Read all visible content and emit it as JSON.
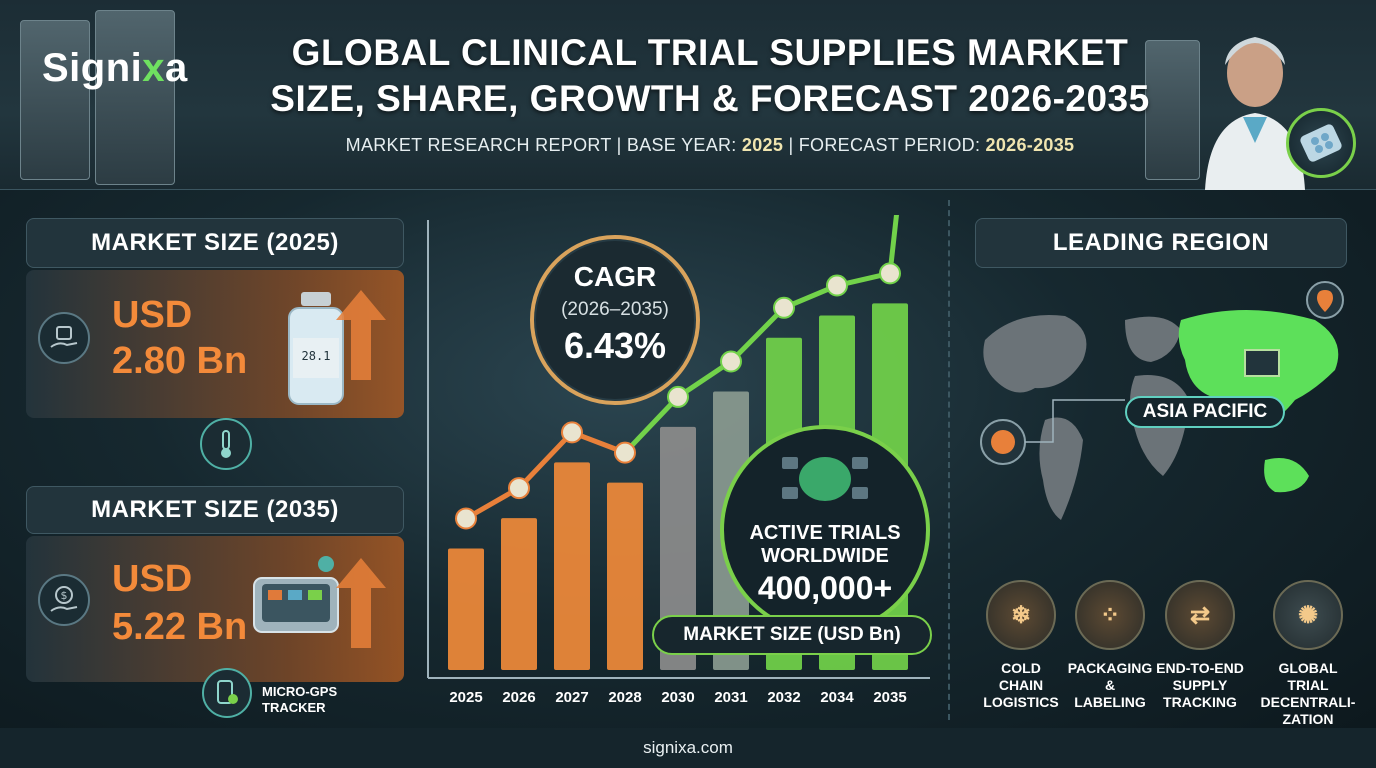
{
  "brand": {
    "logo_main": "Signi",
    "logo_x": "x",
    "logo_end": "a",
    "accent": "#6fe060"
  },
  "header": {
    "title_line1": "GLOBAL CLINICAL TRIAL SUPPLIES MARKET",
    "title_line2": "SIZE, SHARE, GROWTH & FORECAST 2026-2035",
    "sub_prefix": "MARKET RESEARCH REPORT | BASE YEAR: ",
    "base_year": "2025",
    "sub_mid": " | FORECAST PERIOD: ",
    "forecast_period": "2026-2035"
  },
  "left": {
    "size2025_title": "MARKET SIZE (2025)",
    "size2025_currency": "USD",
    "size2025_value": "2.80 Bn",
    "vial_label": "28.1",
    "size2035_title": "MARKET SIZE (2035)",
    "size2035_currency": "USD",
    "size2035_value": "5.22 Bn",
    "tracker_label_1": "MICRO-GPS",
    "tracker_label_2": "TRACKER",
    "orange": "#f38a3a"
  },
  "cagr": {
    "title": "CAGR",
    "period": "(2026–2035)",
    "value": "6.43%"
  },
  "trials": {
    "line1": "ACTIVE TRIALS",
    "line2": "WORLDWIDE",
    "value": "400,000+"
  },
  "chart_data": {
    "type": "bar",
    "legend": "MARKET SIZE (USD Bn)",
    "categories": [
      "2025",
      "2026",
      "2027",
      "2028",
      "2030",
      "2031",
      "2032",
      "2034",
      "2035"
    ],
    "values": [
      2.8,
      3.1,
      3.65,
      3.45,
      4.0,
      4.35,
      4.88,
      5.1,
      5.22
    ],
    "bar_colors": [
      "#f08a3a",
      "#f08a3a",
      "#f08a3a",
      "#f08a3a",
      "#8c8c8c",
      "#8a9a90",
      "#72d24a",
      "#72d24a",
      "#72d24a"
    ],
    "trend_line": true,
    "ylim": [
      1.6,
      5.5
    ]
  },
  "right": {
    "region_title": "LEADING REGION",
    "region_name": "ASIA PACIFIC",
    "services": [
      {
        "line1": "COLD",
        "line2": "CHAIN",
        "line3": "LOGISTICS",
        "icon": "cold-box-icon"
      },
      {
        "line1": "PACKAGING",
        "line2": "&",
        "line3": "LABELING",
        "icon": "blister-pack-icon"
      },
      {
        "line1": "END-TO-END",
        "line2": "SUPPLY",
        "line3": "TRACKING",
        "icon": "tracking-flow-icon"
      },
      {
        "line1": "GLOBAL TRIAL",
        "line2": "DECENTRALI-",
        "line3": "ZATION",
        "icon": "global-network-icon"
      }
    ]
  },
  "footer": {
    "url": "signixa.com"
  }
}
